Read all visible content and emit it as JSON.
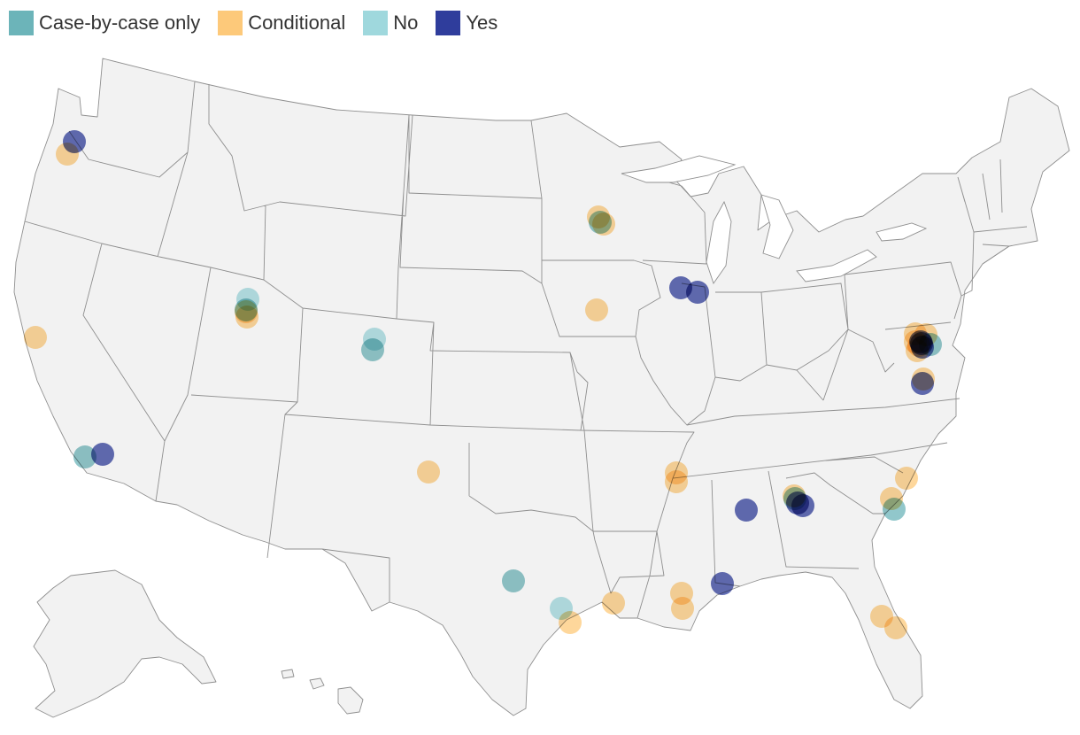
{
  "legend": {
    "items": [
      {
        "key": "case",
        "label": "Case-by-case only",
        "color": "#6cb4b9"
      },
      {
        "key": "conditional",
        "label": "Conditional",
        "color": "#fdc97a"
      },
      {
        "key": "no",
        "label": "No",
        "color": "#9fd8dd"
      },
      {
        "key": "yes",
        "label": "Yes",
        "color": "#2f3d9c"
      }
    ]
  },
  "map_data": {
    "basemap": "United States (lower 48, Alaska, Hawaii) state outlines",
    "point_opacity": 0.75,
    "points": [
      {
        "place": "Portland, OR",
        "category": "yes"
      },
      {
        "place": "Portland, OR",
        "category": "conditional"
      },
      {
        "place": "San Francisco, CA",
        "category": "conditional"
      },
      {
        "place": "Los Angeles, CA",
        "category": "case"
      },
      {
        "place": "Los Angeles, CA",
        "category": "yes"
      },
      {
        "place": "Salt Lake City, UT",
        "category": "no"
      },
      {
        "place": "Salt Lake City, UT",
        "category": "case"
      },
      {
        "place": "Salt Lake City, UT",
        "category": "conditional"
      },
      {
        "place": "Salt Lake City, UT",
        "category": "conditional"
      },
      {
        "place": "Denver, CO",
        "category": "no"
      },
      {
        "place": "Denver, CO",
        "category": "case"
      },
      {
        "place": "Albuquerque, NM",
        "category": "conditional"
      },
      {
        "place": "Minneapolis, MN",
        "category": "conditional"
      },
      {
        "place": "Minneapolis, MN",
        "category": "case"
      },
      {
        "place": "Minneapolis, MN",
        "category": "conditional"
      },
      {
        "place": "Des Moines, IA",
        "category": "conditional"
      },
      {
        "place": "Chicago, IL",
        "category": "yes"
      },
      {
        "place": "Chicago, IL",
        "category": "yes"
      },
      {
        "place": "Austin, TX",
        "category": "case"
      },
      {
        "place": "Houston, TX",
        "category": "no"
      },
      {
        "place": "Houston, TX",
        "category": "conditional"
      },
      {
        "place": "Lafayette, LA",
        "category": "conditional"
      },
      {
        "place": "Memphis, TN",
        "category": "conditional"
      },
      {
        "place": "Memphis, TN",
        "category": "conditional"
      },
      {
        "place": "New Orleans, LA",
        "category": "conditional"
      },
      {
        "place": "New Orleans, LA",
        "category": "conditional"
      },
      {
        "place": "Birmingham, AL",
        "category": "yes"
      },
      {
        "place": "Mobile, AL",
        "category": "yes"
      },
      {
        "place": "Atlanta, GA",
        "category": "conditional"
      },
      {
        "place": "Atlanta, GA",
        "category": "case"
      },
      {
        "place": "Atlanta, GA",
        "category": "yes"
      },
      {
        "place": "Atlanta, GA",
        "category": "yes"
      },
      {
        "place": "Charlotte, NC",
        "category": "conditional"
      },
      {
        "place": "Columbia, SC",
        "category": "conditional"
      },
      {
        "place": "Columbia, SC",
        "category": "case"
      },
      {
        "place": "Orlando, FL",
        "category": "conditional"
      },
      {
        "place": "Tampa, FL",
        "category": "conditional"
      },
      {
        "place": "Baltimore, MD",
        "category": "conditional"
      },
      {
        "place": "Baltimore, MD",
        "category": "conditional"
      },
      {
        "place": "Baltimore, MD",
        "category": "yes"
      },
      {
        "place": "Baltimore, MD",
        "category": "case"
      },
      {
        "place": "Washington, DC",
        "category": "conditional"
      },
      {
        "place": "Washington, DC",
        "category": "conditional"
      },
      {
        "place": "Washington, DC",
        "category": "yes"
      },
      {
        "place": "Washington, DC",
        "category": "yes"
      },
      {
        "place": "Washington, DC",
        "category": "conditional"
      },
      {
        "place": "Richmond, VA",
        "category": "conditional"
      },
      {
        "place": "Richmond, VA",
        "category": "yes"
      }
    ]
  }
}
